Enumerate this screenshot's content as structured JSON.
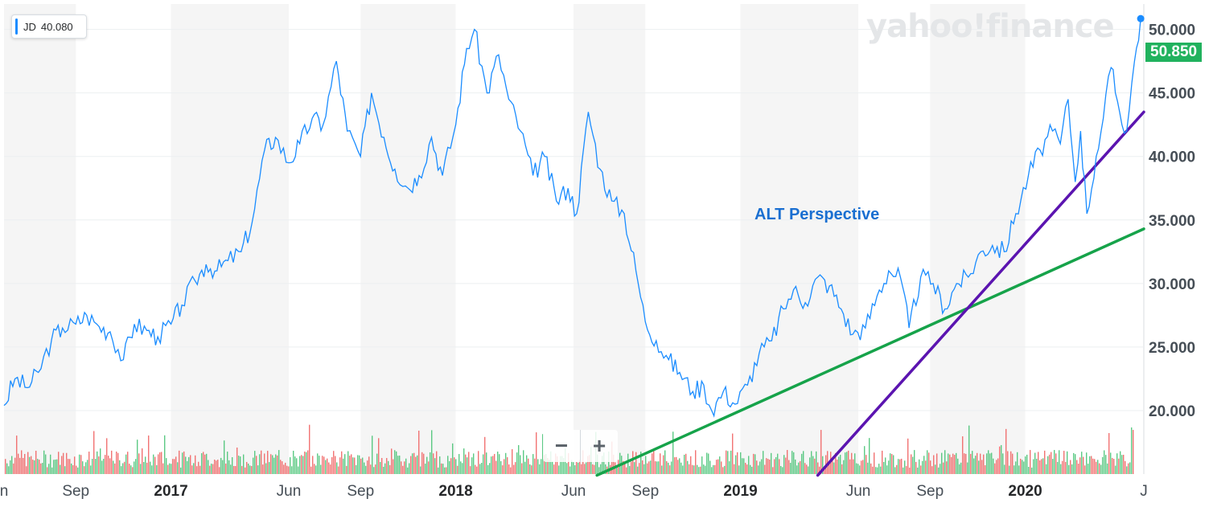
{
  "legend": {
    "symbol": "JD",
    "value": "40.080"
  },
  "watermark": "yahoo!finance",
  "annotation": "ALT Perspective",
  "last_price": "50.850",
  "zoom": {
    "minus": "−",
    "plus": "+"
  },
  "colors": {
    "price_line": "#1a8cff",
    "trend_green": "#16a34a",
    "trend_purple": "#5b14b0",
    "vol_up": "#3fbf6f",
    "vol_down": "#ee5a5a",
    "last_price_bg": "#21b25e"
  },
  "chart_data": {
    "type": "line",
    "title": "",
    "xlabel": "",
    "ylabel": "",
    "ylim": [
      15,
      52
    ],
    "y_ticks": [
      "20.000",
      "25.000",
      "30.000",
      "35.000",
      "40.000",
      "45.000",
      "50.000"
    ],
    "x_ticks": [
      {
        "label": "n",
        "date": "2016-06-01",
        "year": false
      },
      {
        "label": "Sep",
        "date": "2016-09-01",
        "year": false
      },
      {
        "label": "2017",
        "date": "2017-01-01",
        "year": true
      },
      {
        "label": "Jun",
        "date": "2017-06-01",
        "year": false
      },
      {
        "label": "Sep",
        "date": "2017-09-01",
        "year": false
      },
      {
        "label": "2018",
        "date": "2018-01-01",
        "year": true
      },
      {
        "label": "Jun",
        "date": "2018-06-01",
        "year": false
      },
      {
        "label": "Sep",
        "date": "2018-09-01",
        "year": false
      },
      {
        "label": "2019",
        "date": "2019-01-01",
        "year": true
      },
      {
        "label": "Jun",
        "date": "2019-06-01",
        "year": false
      },
      {
        "label": "Sep",
        "date": "2019-09-01",
        "year": false
      },
      {
        "label": "2020",
        "date": "2020-01-01",
        "year": true
      },
      {
        "label": "J",
        "date": "2020-06-01",
        "year": false
      }
    ],
    "series": [
      {
        "points": [
          [
            "2016-06-01",
            20.4
          ],
          [
            "2016-06-15",
            22.5
          ],
          [
            "2016-07-01",
            21.8
          ],
          [
            "2016-07-15",
            23.0
          ],
          [
            "2016-08-01",
            25.6
          ],
          [
            "2016-08-15",
            26.5
          ],
          [
            "2016-09-01",
            26.8
          ],
          [
            "2016-09-15",
            27.5
          ],
          [
            "2016-10-01",
            26.6
          ],
          [
            "2016-10-15",
            26.2
          ],
          [
            "2016-11-01",
            24.0
          ],
          [
            "2016-11-15",
            26.8
          ],
          [
            "2016-12-01",
            26.3
          ],
          [
            "2016-12-15",
            25.8
          ],
          [
            "2017-01-01",
            26.8
          ],
          [
            "2017-01-15",
            28.3
          ],
          [
            "2017-02-01",
            30.2
          ],
          [
            "2017-02-15",
            31.5
          ],
          [
            "2017-03-01",
            31.0
          ],
          [
            "2017-03-15",
            31.8
          ],
          [
            "2017-04-01",
            32.5
          ],
          [
            "2017-04-15",
            34.8
          ],
          [
            "2017-05-01",
            40.5
          ],
          [
            "2017-05-15",
            41.5
          ],
          [
            "2017-06-01",
            39.5
          ],
          [
            "2017-06-15",
            41.0
          ],
          [
            "2017-07-01",
            43.0
          ],
          [
            "2017-07-15",
            42.5
          ],
          [
            "2017-08-01",
            47.5
          ],
          [
            "2017-08-15",
            42.0
          ],
          [
            "2017-09-01",
            40.0
          ],
          [
            "2017-09-15",
            45.0
          ],
          [
            "2017-10-01",
            41.5
          ],
          [
            "2017-10-15",
            39.0
          ],
          [
            "2017-11-01",
            37.5
          ],
          [
            "2017-11-15",
            38.5
          ],
          [
            "2017-12-01",
            41.5
          ],
          [
            "2017-12-15",
            38.5
          ],
          [
            "2018-01-01",
            42.5
          ],
          [
            "2018-01-15",
            48.5
          ],
          [
            "2018-01-25",
            50.0
          ],
          [
            "2018-02-10",
            45.0
          ],
          [
            "2018-02-25",
            48.0
          ],
          [
            "2018-03-10",
            44.5
          ],
          [
            "2018-03-25",
            42.0
          ],
          [
            "2018-04-10",
            38.5
          ],
          [
            "2018-04-25",
            40.0
          ],
          [
            "2018-05-10",
            36.5
          ],
          [
            "2018-05-25",
            37.5
          ],
          [
            "2018-06-05",
            35.5
          ],
          [
            "2018-06-20",
            43.5
          ],
          [
            "2018-07-05",
            39.0
          ],
          [
            "2018-07-20",
            36.5
          ],
          [
            "2018-08-05",
            35.5
          ],
          [
            "2018-08-20",
            31.0
          ],
          [
            "2018-09-01",
            27.0
          ],
          [
            "2018-09-15",
            25.5
          ],
          [
            "2018-10-01",
            24.0
          ],
          [
            "2018-10-15",
            23.0
          ],
          [
            "2018-11-01",
            21.5
          ],
          [
            "2018-11-15",
            22.0
          ],
          [
            "2018-11-25",
            20.0
          ],
          [
            "2018-12-10",
            21.5
          ],
          [
            "2018-12-25",
            20.5
          ],
          [
            "2019-01-10",
            22.0
          ],
          [
            "2019-01-25",
            24.5
          ],
          [
            "2019-02-10",
            25.5
          ],
          [
            "2019-02-25",
            28.0
          ],
          [
            "2019-03-10",
            29.5
          ],
          [
            "2019-03-25",
            28.5
          ],
          [
            "2019-04-10",
            30.5
          ],
          [
            "2019-04-25",
            29.8
          ],
          [
            "2019-05-10",
            28.0
          ],
          [
            "2019-05-25",
            26.0
          ],
          [
            "2019-06-10",
            26.5
          ],
          [
            "2019-06-25",
            29.0
          ],
          [
            "2019-07-10",
            31.0
          ],
          [
            "2019-07-25",
            30.5
          ],
          [
            "2019-08-05",
            26.5
          ],
          [
            "2019-08-20",
            30.5
          ],
          [
            "2019-09-05",
            30.0
          ],
          [
            "2019-09-20",
            28.0
          ],
          [
            "2019-10-05",
            30.0
          ],
          [
            "2019-10-20",
            30.5
          ],
          [
            "2019-11-05",
            32.5
          ],
          [
            "2019-11-20",
            33.0
          ],
          [
            "2019-12-05",
            32.5
          ],
          [
            "2019-12-20",
            35.5
          ],
          [
            "2020-01-05",
            38.5
          ],
          [
            "2020-01-20",
            40.5
          ],
          [
            "2020-02-05",
            42.0
          ],
          [
            "2020-02-15",
            41.0
          ],
          [
            "2020-02-25",
            44.5
          ],
          [
            "2020-03-05",
            38.0
          ],
          [
            "2020-03-12",
            42.0
          ],
          [
            "2020-03-20",
            35.5
          ],
          [
            "2020-04-01",
            40.0
          ],
          [
            "2020-04-10",
            43.0
          ],
          [
            "2020-04-20",
            47.0
          ],
          [
            "2020-05-01",
            43.5
          ],
          [
            "2020-05-10",
            42.0
          ],
          [
            "2020-05-20",
            47.5
          ],
          [
            "2020-05-28",
            50.85
          ]
        ]
      }
    ],
    "trendlines": [
      {
        "color": "green",
        "from": [
          "2018-07-01",
          14.9
        ],
        "to": [
          "2020-06-01",
          34.3
        ]
      },
      {
        "color": "purple",
        "from": [
          "2019-04-10",
          14.9
        ],
        "to": [
          "2020-06-01",
          43.5
        ]
      }
    ],
    "volume": {
      "note": "daily volume bars, green up / red down"
    }
  }
}
